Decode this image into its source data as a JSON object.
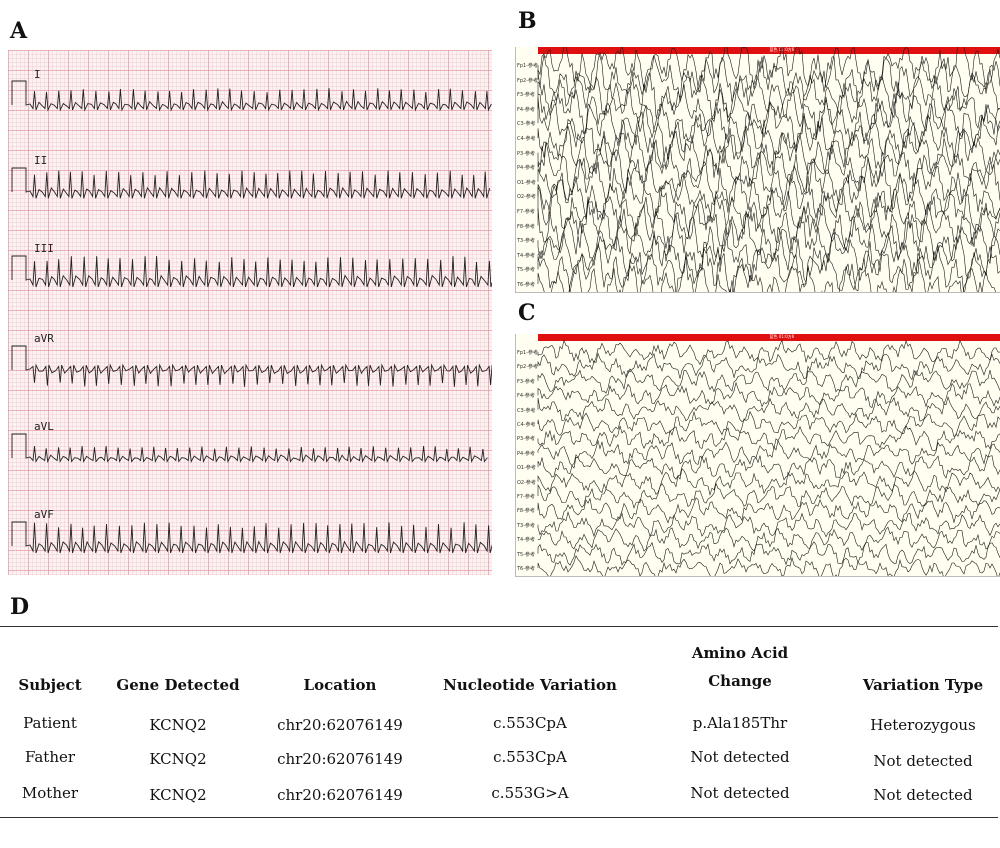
{
  "panels": {
    "a": "A",
    "b": "B",
    "c": "C",
    "d": "D"
  },
  "ecg": {
    "leads": [
      "I",
      "II",
      "III",
      "aVR",
      "aVL",
      "aVF"
    ]
  },
  "eeg": {
    "channels": [
      "Fp1-参考",
      "Fp2-参考",
      "F3-参考",
      "F4-参考",
      "C3-参考",
      "C4-参考",
      "P3-参考",
      "P4-参考",
      "O1-参考",
      "O2-参考",
      "F7-参考",
      "F8-参考",
      "T3-参考",
      "T4-参考",
      "T5-参考",
      "T6-参考"
    ],
    "bar_text": "蓝色 01:0方6",
    "colors": {
      "bar": "#e01010",
      "background": "#fffef0"
    }
  },
  "table": {
    "headers": {
      "subject": "Subject",
      "gene": "Gene Detected",
      "location": "Location",
      "nucleotide": "Nucleotide Variation",
      "amino_line1": "Amino Acid",
      "amino_line2": "Change",
      "type": "Variation Type"
    },
    "rows": [
      {
        "subject": "Patient",
        "gene": "KCNQ2",
        "location": "chr20:62076149",
        "nucleotide": "c.553CpA",
        "amino": "p.Ala185Thr",
        "type": "Heterozygous"
      },
      {
        "subject": "Father",
        "gene": "KCNQ2",
        "location": "chr20:62076149",
        "nucleotide": "c.553CpA",
        "amino": "Not detected",
        "type": "Not detected"
      },
      {
        "subject": "Mother",
        "gene": "KCNQ2",
        "location": "chr20:62076149",
        "nucleotide": "c.553G>A",
        "amino": "Not detected",
        "type": "Not detected"
      }
    ]
  }
}
